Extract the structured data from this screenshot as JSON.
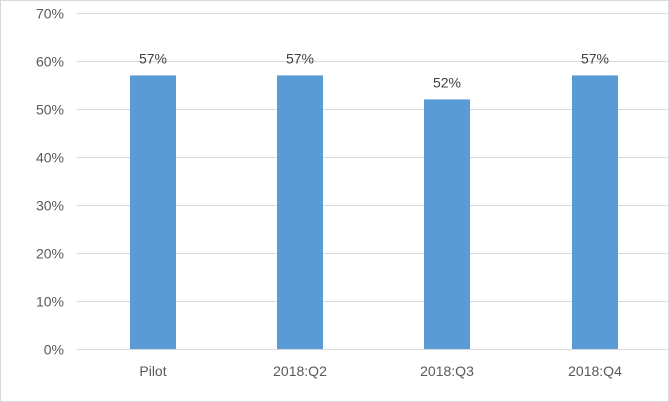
{
  "chart_data": {
    "type": "bar",
    "title": "",
    "xlabel": "",
    "ylabel": "",
    "categories": [
      "Pilot",
      "2018:Q2",
      "2018:Q3",
      "2018:Q4"
    ],
    "values": [
      57,
      57,
      52,
      57
    ],
    "data_labels": [
      "57%",
      "57%",
      "52%",
      "57%"
    ],
    "ylim": [
      0,
      70
    ],
    "y_ticks": [
      0,
      10,
      20,
      30,
      40,
      50,
      60,
      70
    ],
    "y_tick_labels": [
      "0%",
      "10%",
      "20%",
      "30%",
      "40%",
      "50%",
      "60%",
      "70%"
    ],
    "value_unit": "%",
    "grid": true,
    "legend": "none",
    "bar_color": "#5b9bd5",
    "gridline_color": "#d9d9d9"
  }
}
